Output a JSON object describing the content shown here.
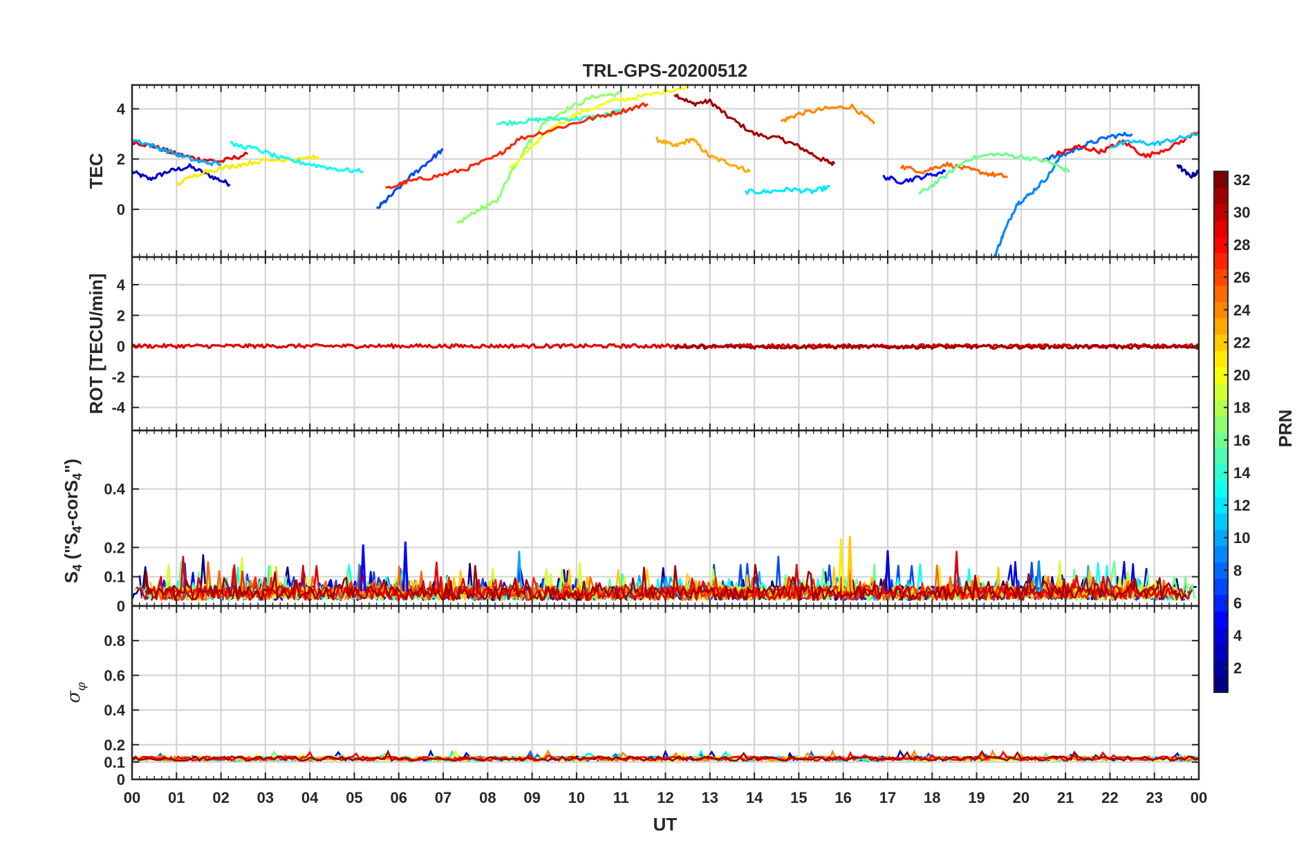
{
  "chart_data": {
    "type": "line",
    "title": "TRL-GPS-20200512",
    "xlabel": "UT",
    "x_tick_labels": [
      "00",
      "01",
      "02",
      "03",
      "04",
      "05",
      "06",
      "07",
      "08",
      "09",
      "10",
      "11",
      "12",
      "13",
      "14",
      "15",
      "16",
      "17",
      "18",
      "19",
      "20",
      "21",
      "22",
      "23",
      "00"
    ],
    "xlim": [
      0,
      24
    ],
    "grid": true,
    "panels": [
      {
        "id": "tec",
        "ylabel": "TEC",
        "ylim": [
          -1.9,
          4.95
        ],
        "yticks": [
          0,
          2,
          4
        ],
        "ytick_labels": [
          "0",
          "2",
          "4"
        ],
        "series": [
          {
            "prn": 3,
            "x": [
              0.0,
              0.4,
              0.8,
              1.3,
              1.8,
              2.2
            ],
            "y": [
              1.5,
              1.2,
              1.5,
              1.7,
              1.3,
              1.0
            ]
          },
          {
            "prn": 31,
            "x": [
              12.2,
              12.6,
              13.0,
              13.4,
              14.0,
              14.6,
              15.0,
              15.5,
              15.8
            ],
            "y": [
              4.6,
              4.2,
              4.3,
              3.7,
              3.0,
              2.8,
              2.5,
              2.0,
              1.8
            ]
          },
          {
            "prn": 29,
            "x": [
              0.0,
              0.5,
              1.0,
              1.5,
              2.0,
              2.6
            ],
            "y": [
              2.7,
              2.5,
              2.2,
              2.0,
              1.9,
              2.2
            ]
          },
          {
            "prn": 23,
            "x": [
              11.8,
              12.2,
              12.6,
              13.0,
              13.5,
              13.9
            ],
            "y": [
              2.8,
              2.5,
              2.8,
              2.1,
              1.8,
              1.5
            ]
          },
          {
            "prn": 24,
            "x": [
              14.6,
              15.0,
              15.6,
              16.2,
              16.7
            ],
            "y": [
              3.5,
              3.8,
              4.0,
              4.1,
              3.4
            ]
          },
          {
            "prn": 17,
            "x": [
              7.3,
              7.8,
              8.2,
              8.5,
              8.9,
              9.3,
              9.8,
              10.4,
              11.0
            ],
            "y": [
              -0.6,
              0.0,
              0.3,
              1.4,
              2.6,
              3.5,
              4.0,
              4.5,
              4.6
            ]
          },
          {
            "prn": 20,
            "x": [
              8.5,
              9.0,
              9.5,
              10.0,
              10.8,
              11.5,
              12.5
            ],
            "y": [
              1.6,
              2.5,
              3.3,
              3.8,
              4.3,
              4.5,
              4.9
            ]
          },
          {
            "prn": 14,
            "x": [
              8.2,
              8.8,
              9.3,
              10.0,
              10.5,
              11.0
            ],
            "y": [
              3.4,
              3.5,
              3.6,
              3.6,
              3.7,
              3.9
            ]
          },
          {
            "prn": 12,
            "x": [
              13.8,
              14.3,
              14.8,
              15.3,
              15.7
            ],
            "y": [
              0.7,
              0.7,
              0.8,
              0.7,
              0.9
            ]
          },
          {
            "prn": 7,
            "x": [
              5.5,
              5.8,
              6.2,
              6.6,
              7.0
            ],
            "y": [
              0.0,
              0.5,
              1.2,
              1.8,
              2.4
            ]
          },
          {
            "prn": 27,
            "x": [
              5.7,
              6.2,
              6.8,
              7.5,
              8.2,
              8.7,
              9.5,
              10.3,
              11.0,
              11.6
            ],
            "y": [
              0.8,
              1.1,
              1.3,
              1.6,
              2.1,
              2.8,
              3.2,
              3.6,
              3.9,
              4.2
            ]
          },
          {
            "prn": 9,
            "x": [
              19.4,
              19.6,
              19.9,
              20.2,
              20.6,
              21.0
            ],
            "y": [
              -1.9,
              -1.0,
              0.2,
              0.6,
              1.3,
              2.4
            ]
          },
          {
            "prn": 8,
            "x": [
              20.5,
              21.0,
              21.5,
              22.0,
              22.5
            ],
            "y": [
              2.0,
              2.2,
              2.6,
              2.9,
              3.0
            ]
          },
          {
            "prn": 25,
            "x": [
              17.3,
              17.8,
              18.3,
              18.8,
              19.3,
              19.7
            ],
            "y": [
              1.7,
              1.5,
              1.8,
              1.6,
              1.4,
              1.3
            ]
          },
          {
            "prn": 16,
            "x": [
              17.7,
              18.2,
              18.8,
              19.4,
              20.0,
              20.6,
              21.1
            ],
            "y": [
              0.6,
              1.2,
              2.0,
              2.2,
              2.1,
              1.9,
              1.5
            ]
          },
          {
            "prn": 28,
            "x": [
              20.8,
              21.3,
              21.8,
              22.3,
              22.8,
              23.4,
              24.0
            ],
            "y": [
              2.2,
              2.5,
              2.3,
              2.7,
              2.1,
              2.5,
              3.1
            ]
          },
          {
            "prn": 11,
            "x": [
              22.0,
              22.5,
              23.0,
              23.5,
              24.0
            ],
            "y": [
              2.5,
              2.7,
              2.6,
              2.8,
              3.0
            ]
          },
          {
            "prn": 2,
            "x": [
              23.5,
              23.8,
              24.0
            ],
            "y": [
              1.8,
              1.3,
              1.5
            ]
          },
          {
            "prn": 5,
            "x": [
              16.9,
              17.3,
              17.8,
              18.3
            ],
            "y": [
              1.3,
              1.1,
              1.3,
              1.5
            ]
          },
          {
            "prn": 10,
            "x": [
              0.0,
              0.5,
              1.0,
              1.5,
              2.0
            ],
            "y": [
              2.8,
              2.5,
              2.2,
              1.9,
              1.8
            ]
          },
          {
            "prn": 21,
            "x": [
              1.0,
              1.6,
              2.2,
              2.8,
              3.5,
              4.2
            ],
            "y": [
              1.0,
              1.5,
              1.7,
              1.9,
              2.0,
              2.1
            ]
          },
          {
            "prn": 13,
            "x": [
              2.2,
              2.8,
              3.4,
              4.0,
              4.6,
              5.2
            ],
            "y": [
              2.6,
              2.4,
              2.0,
              1.8,
              1.6,
              1.5
            ]
          }
        ]
      },
      {
        "id": "rot",
        "ylabel": "ROT [TECU/min]",
        "ylim": [
          -5.5,
          5.8
        ],
        "yticks": [
          -4,
          -2,
          0,
          2,
          4
        ],
        "ytick_labels": [
          "-4",
          "-2",
          "0",
          "2",
          "4"
        ],
        "series": [
          {
            "prn": 29,
            "x": [
              0,
              24
            ],
            "y": [
              0.0,
              0.0
            ]
          },
          {
            "prn": 31,
            "x": [
              12.2,
              24
            ],
            "y": [
              -0.05,
              -0.05
            ]
          }
        ]
      },
      {
        "id": "s4",
        "ylabel": "S4 (\"S4-corS4\")",
        "ylabel_main": "S",
        "ylabel_sub": "4",
        "ylabel_mid": " (\"S",
        "ylabel_mid2": "-corS",
        "ylabel_end": "\")",
        "ylim": [
          0,
          0.6
        ],
        "yticks": [
          0,
          0.1,
          0.2,
          0.4
        ],
        "ytick_labels": [
          "0",
          "0.1",
          "0.2",
          "0.4"
        ],
        "typical_range": [
          0.02,
          0.1
        ],
        "peaks": [
          {
            "prn": 5,
            "x": 5.2,
            "y": 0.21
          },
          {
            "prn": 5,
            "x": 6.15,
            "y": 0.22
          },
          {
            "prn": 21,
            "x": 15.95,
            "y": 0.23
          },
          {
            "prn": 22,
            "x": 16.15,
            "y": 0.24
          },
          {
            "prn": 4,
            "x": 17.0,
            "y": 0.19
          },
          {
            "prn": 9,
            "x": 20.4,
            "y": 0.155
          }
        ]
      },
      {
        "id": "sigma_phi",
        "ylabel": "σφ",
        "ylabel_main": "σ",
        "ylabel_sub": "φ",
        "ylim": [
          0,
          1.0
        ],
        "yticks": [
          0,
          0.1,
          0.2,
          0.4,
          0.6,
          0.8
        ],
        "ytick_labels": [
          "0",
          "0.1",
          "0.2",
          "0.4",
          "0.6",
          "0.8"
        ],
        "typical_value": 0.12
      }
    ],
    "colorbar": {
      "label": "PRN",
      "range": [
        1,
        32
      ],
      "ticks": [
        2,
        4,
        6,
        8,
        10,
        12,
        14,
        16,
        18,
        20,
        22,
        24,
        26,
        28,
        30,
        32
      ],
      "tick_labels": [
        "2",
        "4",
        "6",
        "8",
        "10",
        "12",
        "14",
        "16",
        "18",
        "20",
        "22",
        "24",
        "26",
        "28",
        "30",
        "32"
      ],
      "colormap": "jet"
    }
  }
}
